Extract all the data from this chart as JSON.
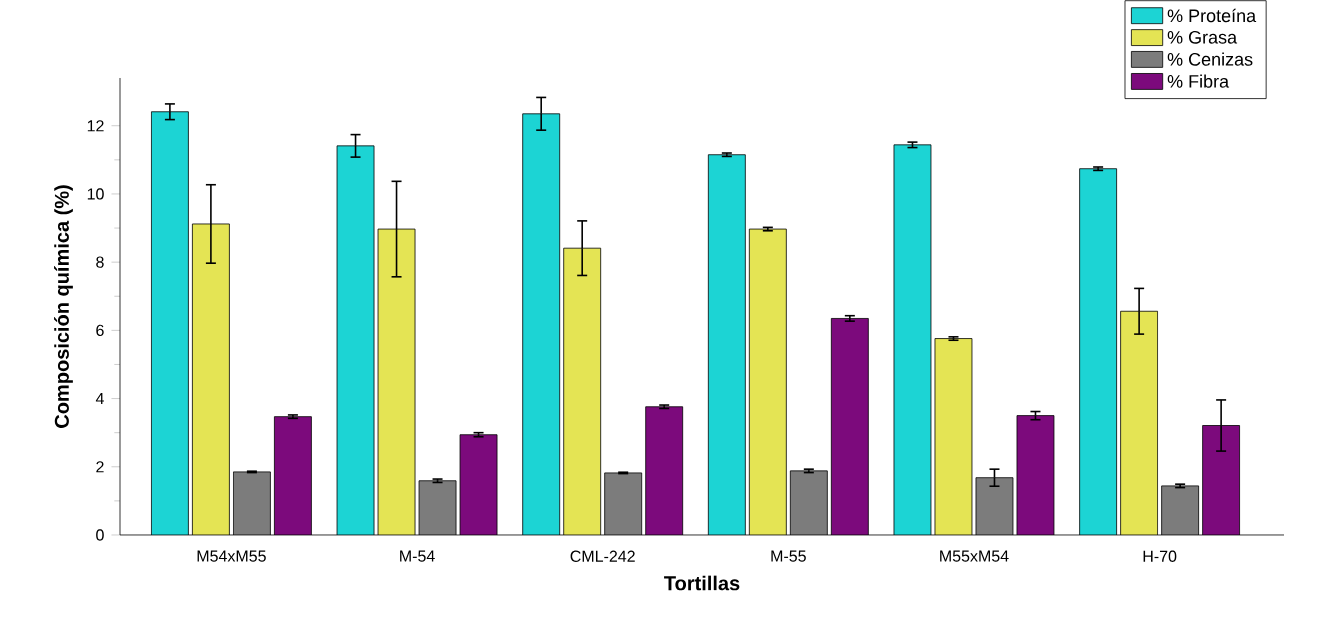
{
  "chart_data": {
    "type": "bar",
    "xlabel": "Tortillas",
    "ylabel": "Composición química (%)",
    "categories": [
      "M54xM55",
      "M-54",
      "CML-242",
      "M-55",
      "M55xM54",
      "H-70"
    ],
    "series": [
      {
        "name": "% Proteína",
        "color": "#1cd4d4",
        "values": [
          12.41,
          11.41,
          12.35,
          11.15,
          11.44,
          10.74
        ],
        "errors": [
          0.23,
          0.33,
          0.48,
          0.05,
          0.08,
          0.05
        ]
      },
      {
        "name": "% Grasa",
        "color": "#e4e454",
        "values": [
          9.12,
          8.97,
          8.41,
          8.97,
          5.76,
          6.56
        ],
        "errors": [
          1.15,
          1.4,
          0.8,
          0.05,
          0.05,
          0.67
        ]
      },
      {
        "name": "% Cenizas",
        "color": "#7c7c7c",
        "values": [
          1.85,
          1.59,
          1.82,
          1.88,
          1.68,
          1.44
        ],
        "errors": [
          0.02,
          0.05,
          0.02,
          0.05,
          0.25,
          0.05
        ]
      },
      {
        "name": "% Fibra",
        "color": "#7c0a7c",
        "values": [
          3.47,
          2.94,
          3.76,
          6.35,
          3.5,
          3.21
        ],
        "errors": [
          0.05,
          0.06,
          0.05,
          0.08,
          0.12,
          0.75
        ]
      }
    ],
    "ylim": [
      0,
      13.4
    ],
    "yticks": [
      0,
      2,
      4,
      6,
      8,
      10,
      12
    ],
    "legend": "top right",
    "grid": false
  }
}
